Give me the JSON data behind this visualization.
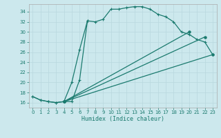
{
  "xlabel": "Humidex (Indice chaleur)",
  "xlim": [
    -0.5,
    23.5
  ],
  "ylim": [
    15,
    35.5
  ],
  "yticks": [
    16,
    18,
    20,
    22,
    24,
    26,
    28,
    30,
    32,
    34
  ],
  "xticks": [
    0,
    1,
    2,
    3,
    4,
    5,
    6,
    7,
    8,
    9,
    10,
    11,
    12,
    13,
    14,
    15,
    16,
    17,
    18,
    19,
    20,
    21,
    22,
    23
  ],
  "bg_color": "#cce8ed",
  "line_color": "#1a7a6e",
  "curve1_x": [
    0,
    1,
    2,
    3,
    4,
    5,
    6,
    7,
    8,
    9,
    10,
    11,
    12,
    13,
    14,
    15,
    16,
    17,
    18,
    19,
    20,
    21,
    22,
    23
  ],
  "curve1_y": [
    17.2,
    16.5,
    16.2,
    16.0,
    16.2,
    16.2,
    20.5,
    32.2,
    32.0,
    32.5,
    34.5,
    34.5,
    34.8,
    35.0,
    35.0,
    34.5,
    33.5,
    33.0,
    32.0,
    30.0,
    29.5,
    28.5,
    28.0,
    25.5
  ],
  "curve2_x": [
    0,
    1,
    2,
    3,
    4,
    5,
    6,
    7
  ],
  "curve2_y": [
    17.2,
    16.5,
    16.2,
    16.0,
    16.2,
    20.0,
    26.5,
    32.2
  ],
  "line1_x": [
    4,
    23
  ],
  "line1_y": [
    16.2,
    25.5
  ],
  "line2_x": [
    4,
    22
  ],
  "line2_y": [
    16.2,
    29.0
  ],
  "line3_x": [
    4,
    20
  ],
  "line3_y": [
    16.2,
    30.0
  ]
}
